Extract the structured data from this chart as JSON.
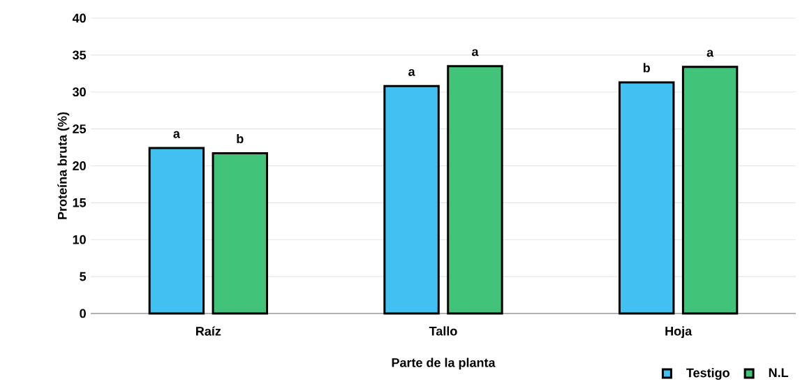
{
  "chart_data": {
    "type": "bar",
    "xlabel": "Parte de la planta",
    "ylabel": "Proteína bruta (%)",
    "categories": [
      "Raíz",
      "Tallo",
      "Hoja"
    ],
    "series": [
      {
        "name": "Testigo",
        "color": "#41c1f1",
        "values": [
          22.4,
          30.8,
          31.3
        ],
        "value_labels": [
          "a",
          "a",
          "b"
        ]
      },
      {
        "name": "N.L",
        "color": "#41c37a",
        "values": [
          21.7,
          33.5,
          33.4
        ],
        "value_labels": [
          "b",
          "a",
          "a"
        ]
      }
    ],
    "ylim": [
      0,
      40
    ],
    "yticks": [
      0,
      5,
      10,
      15,
      20,
      25,
      30,
      35,
      40
    ],
    "grid": "y",
    "legend": "bottom right"
  }
}
